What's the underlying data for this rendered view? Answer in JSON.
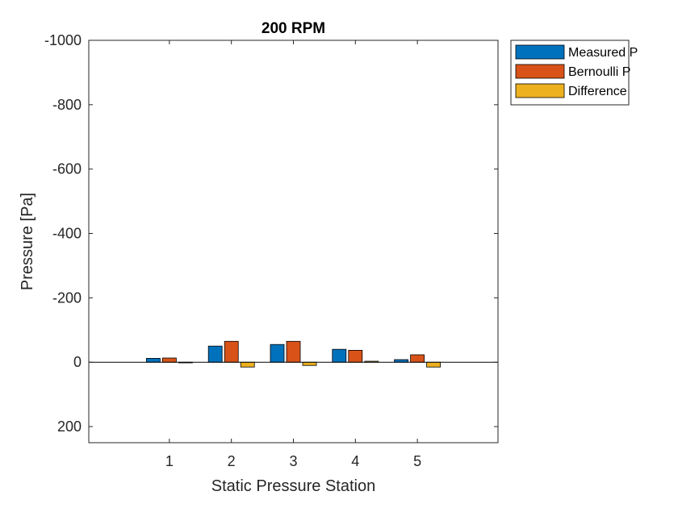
{
  "chart_data": {
    "type": "bar",
    "title": "200 RPM",
    "xlabel": "Static Pressure Station",
    "ylabel": "Pressure [Pa]",
    "categories": [
      "1",
      "2",
      "3",
      "4",
      "5"
    ],
    "y_reversed": true,
    "ylim": [
      250,
      -1000
    ],
    "yticks": [
      200,
      0,
      -200,
      -400,
      -600,
      -800,
      -1000
    ],
    "ytick_labels": [
      "200",
      "0",
      "-200",
      "-400",
      "-600",
      "-800",
      "-1000"
    ],
    "grid": false,
    "legend_position": "outside-top-right",
    "series": [
      {
        "name": "Measured P",
        "color": "#0072BD",
        "values": [
          -12,
          -50,
          -55,
          -40,
          -8
        ]
      },
      {
        "name": "Bernoulli P",
        "color": "#D95319",
        "values": [
          -13,
          -65,
          -65,
          -37,
          -23
        ]
      },
      {
        "name": "Difference",
        "color": "#EDB120",
        "values": [
          1,
          15,
          10,
          -3,
          15
        ]
      }
    ]
  }
}
